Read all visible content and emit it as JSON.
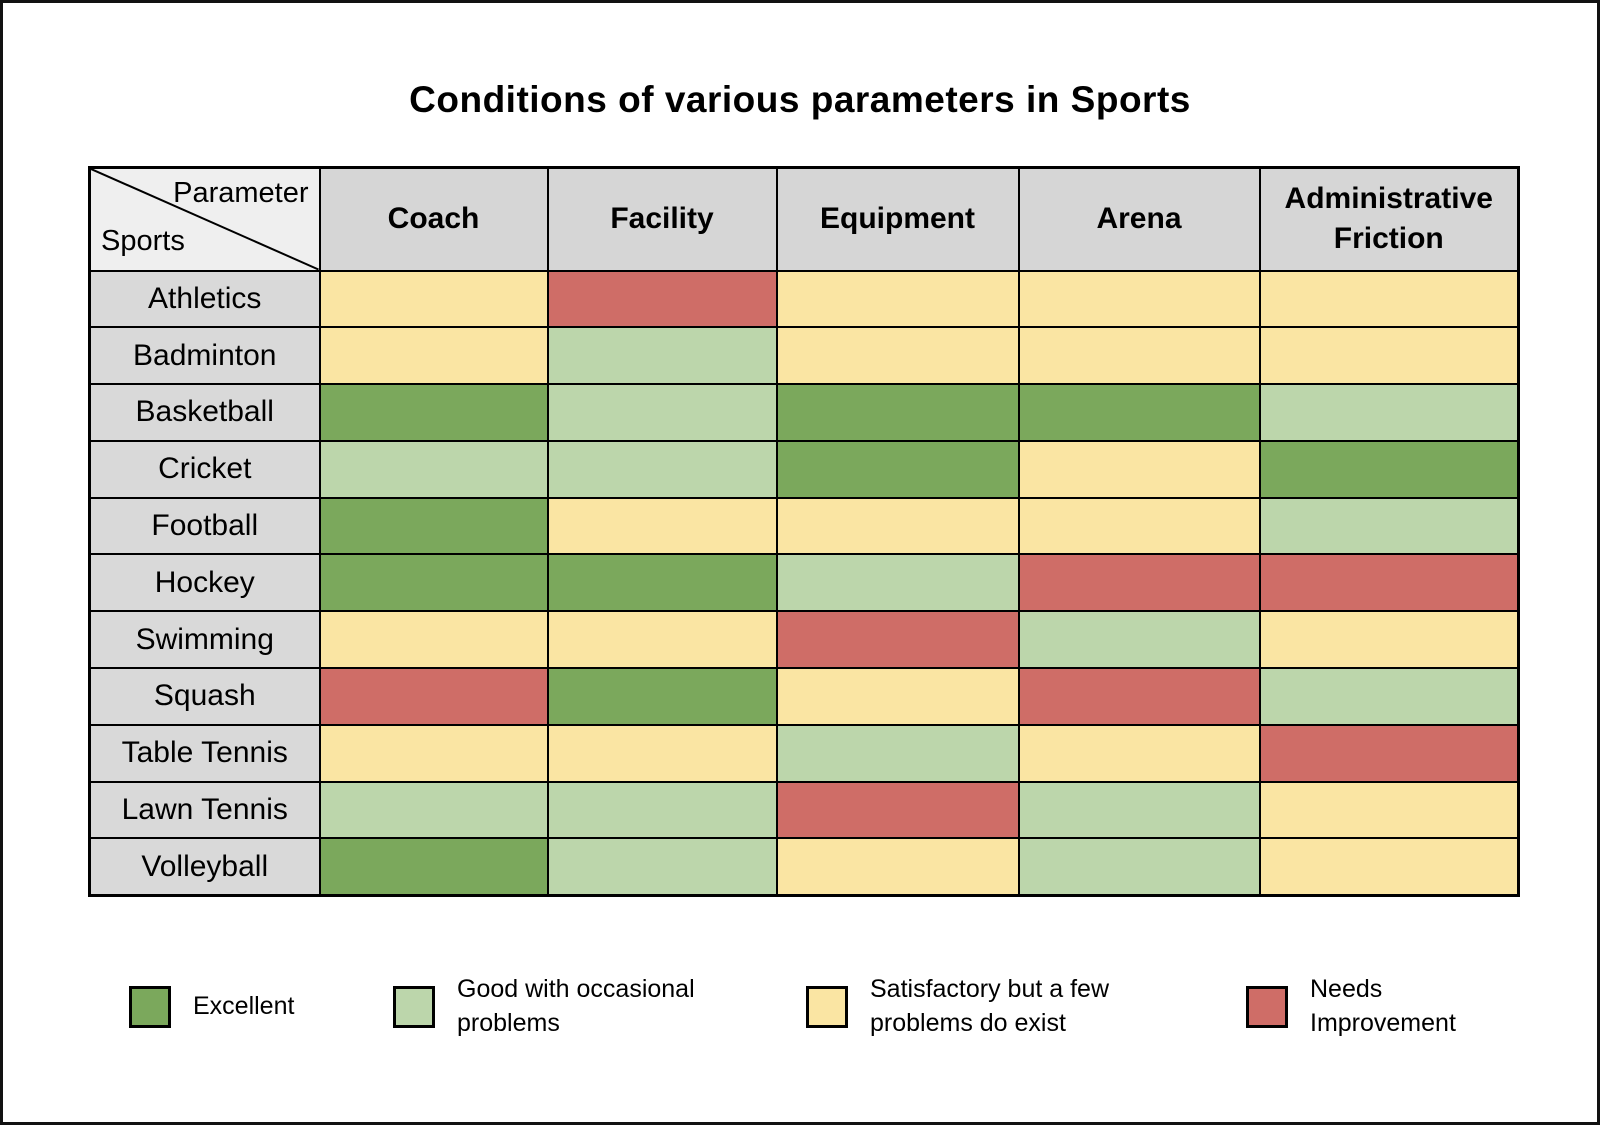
{
  "title": "Conditions of various parameters in Sports",
  "corner": {
    "parameter_label": "Parameter",
    "sports_label": "Sports"
  },
  "chart_data": {
    "type": "heatmap",
    "title": "Conditions of various parameters in Sports",
    "columns": [
      "Coach",
      "Facility",
      "Equipment",
      "Arena",
      "Administrative Friction"
    ],
    "rows": [
      "Athletics",
      "Badminton",
      "Basketball",
      "Cricket",
      "Football",
      "Hockey",
      "Swimming",
      "Squash",
      "Table Tennis",
      "Lawn Tennis",
      "Volleyball"
    ],
    "rating_scale": {
      "E": "Excellent",
      "G": "Good with occasional problems",
      "S": "Satisfactory but a few problems do exist",
      "N": "Needs Improvement"
    },
    "values": [
      [
        "S",
        "N",
        "S",
        "S",
        "S"
      ],
      [
        "S",
        "G",
        "S",
        "S",
        "S"
      ],
      [
        "E",
        "G",
        "E",
        "E",
        "G"
      ],
      [
        "G",
        "G",
        "E",
        "S",
        "E"
      ],
      [
        "E",
        "S",
        "S",
        "S",
        "G"
      ],
      [
        "E",
        "E",
        "G",
        "N",
        "N"
      ],
      [
        "S",
        "S",
        "N",
        "G",
        "S"
      ],
      [
        "N",
        "E",
        "S",
        "N",
        "G"
      ],
      [
        "S",
        "S",
        "G",
        "S",
        "N"
      ],
      [
        "G",
        "G",
        "N",
        "G",
        "S"
      ],
      [
        "E",
        "G",
        "S",
        "G",
        "S"
      ]
    ]
  },
  "legend": [
    {
      "code": "E",
      "label": "Excellent",
      "color": "#7BA85C"
    },
    {
      "code": "G",
      "label": "Good with occasional problems",
      "color": "#BCD6AB"
    },
    {
      "code": "S",
      "label": "Satisfactory but a few problems do exist",
      "color": "#FAE5A3"
    },
    {
      "code": "N",
      "label": "Needs Improvement",
      "color": "#CF6D67"
    }
  ],
  "colors": {
    "E": "#7BA85C",
    "G": "#BCD6AB",
    "S": "#FAE5A3",
    "N": "#CF6D67",
    "header_bg": "#D6D6D6",
    "row_label_bg": "#D9D9D9",
    "corner_bg": "#EFEFEF",
    "border": "#000000",
    "canvas_bg": "#FFFFFF"
  }
}
